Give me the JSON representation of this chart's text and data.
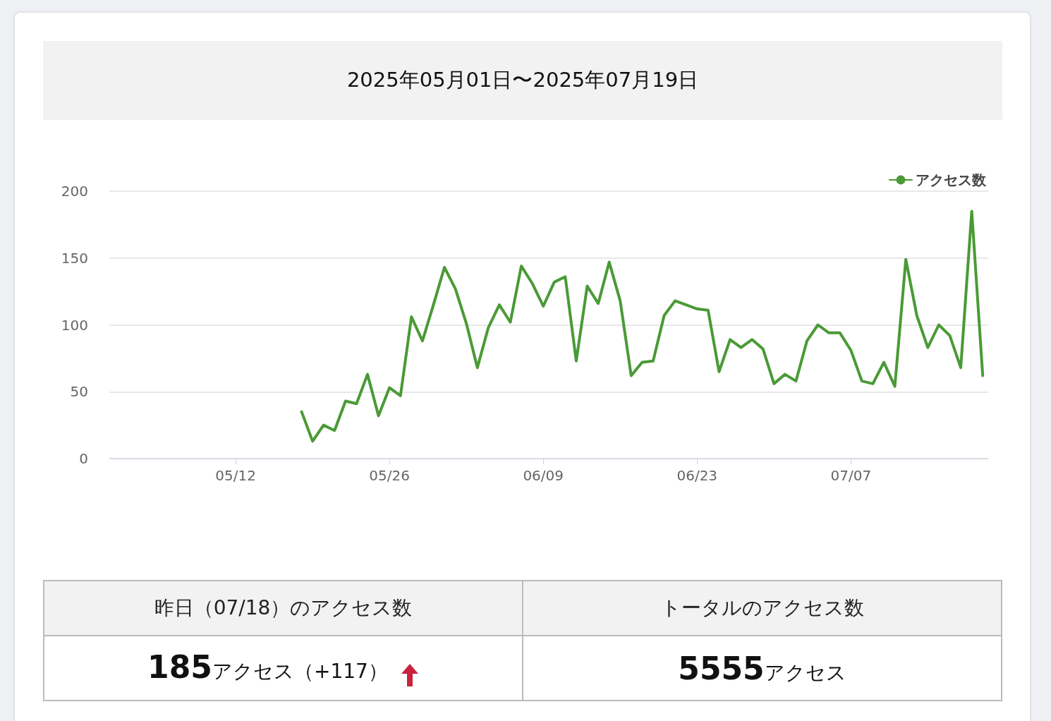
{
  "chart_data": {
    "type": "line",
    "title": "2025年05月01日〜2025年07月19日",
    "categories": [
      null,
      null,
      null,
      null,
      null,
      null,
      null,
      null,
      null,
      null,
      null,
      "05/12",
      null,
      null,
      null,
      null,
      null,
      null,
      null,
      null,
      null,
      null,
      null,
      null,
      null,
      "05/26",
      null,
      null,
      null,
      null,
      null,
      null,
      null,
      null,
      null,
      null,
      null,
      null,
      null,
      "06/09",
      null,
      null,
      null,
      null,
      null,
      null,
      null,
      null,
      null,
      null,
      null,
      null,
      null,
      "06/23",
      null,
      null,
      null,
      null,
      null,
      null,
      null,
      null,
      null,
      null,
      null,
      null,
      null,
      "07/07",
      null,
      null,
      null,
      null,
      null,
      null,
      null,
      null,
      null,
      null,
      null,
      null
    ],
    "series": [
      {
        "name": "アクセス数",
        "color": "#4a9a36",
        "values": [
          null,
          null,
          null,
          null,
          null,
          null,
          null,
          null,
          null,
          null,
          null,
          null,
          null,
          null,
          null,
          null,
          null,
          35,
          13,
          25,
          21,
          43,
          41,
          63,
          32,
          53,
          47,
          106,
          88,
          115,
          143,
          127,
          101,
          68,
          98,
          115,
          102,
          144,
          131,
          114,
          132,
          136,
          73,
          129,
          116,
          147,
          118,
          62,
          72,
          73,
          107,
          118,
          115,
          112,
          111,
          65,
          89,
          83,
          89,
          82,
          56,
          63,
          58,
          88,
          100,
          94,
          94,
          81,
          58,
          56,
          72,
          54,
          149,
          107,
          83,
          100,
          92,
          68,
          185,
          62
        ]
      }
    ],
    "ylim": [
      0,
      200
    ],
    "yticks": [
      0,
      50,
      100,
      150,
      200
    ],
    "grid": "y",
    "legend": "top right",
    "marker": "none",
    "annotations": [
      "昨日（07/18）のアクセス数",
      "トータルのアクセス数",
      "185",
      "アクセス（+117）",
      "5555",
      "アクセス"
    ]
  }
}
